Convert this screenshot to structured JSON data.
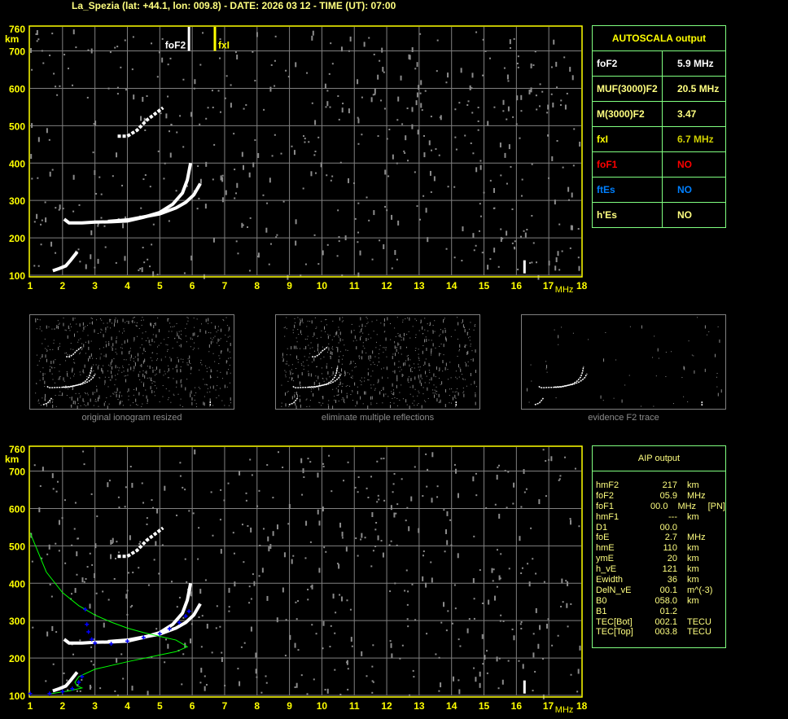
{
  "header": {
    "title": "La_Spezia (lat: +44.1, lon: 009.8) - DATE: 2026 03 12 - TIME (UT): 07:00"
  },
  "colors": {
    "axis": "#ffff00",
    "grid": "#808080",
    "trace": "#ffffff",
    "noise": "#8c8c8c",
    "profile": "#00ff00",
    "aip_trace": "#0000ff",
    "panel_border": "#80ff80",
    "foF1": "#ff0000",
    "ftEs": "#0080ff",
    "fxI": "#e0e000"
  },
  "chart_data": [
    {
      "type": "scatter",
      "name": "ionogram",
      "xlabel": "MHz",
      "ylabel": "km",
      "xlim": [
        1,
        18
      ],
      "ylim": [
        100,
        760
      ],
      "xticks": [
        "1",
        "2",
        "3",
        "4",
        "5",
        "6",
        "7",
        "8",
        "9",
        "10",
        "11",
        "12",
        "13",
        "14",
        "15",
        "16",
        "17",
        "18"
      ],
      "yticks": [
        "100",
        "200",
        "300",
        "400",
        "500",
        "600",
        "700",
        "760"
      ],
      "grid": true,
      "markers": [
        {
          "label": "foF2",
          "x": 5.9,
          "color": "#ffffff"
        },
        {
          "label": "fxI",
          "x": 6.7,
          "color": "#ffff00"
        }
      ],
      "traces": {
        "F2_ordinary": [
          [
            2.05,
            250
          ],
          [
            2.2,
            240
          ],
          [
            2.6,
            240
          ],
          [
            3,
            242
          ],
          [
            3.5,
            243
          ],
          [
            4,
            245
          ],
          [
            4.5,
            255
          ],
          [
            5,
            268
          ],
          [
            5.4,
            290
          ],
          [
            5.7,
            320
          ],
          [
            5.85,
            355
          ],
          [
            5.95,
            400
          ]
        ],
        "F2_extraordinary": [
          [
            3.4,
            244
          ],
          [
            4,
            248
          ],
          [
            4.5,
            256
          ],
          [
            5,
            264
          ],
          [
            5.5,
            280
          ],
          [
            5.8,
            295
          ],
          [
            6.05,
            315
          ],
          [
            6.25,
            345
          ]
        ],
        "E_layer": [
          [
            1.7,
            112
          ],
          [
            1.9,
            118
          ],
          [
            2.1,
            125
          ],
          [
            2.25,
            140
          ],
          [
            2.45,
            162
          ]
        ],
        "second_hop": [
          [
            3.7,
            472
          ],
          [
            4,
            472
          ],
          [
            4.3,
            488
          ],
          [
            4.6,
            515
          ],
          [
            5.1,
            548
          ]
        ],
        "spike": [
          [
            16.25,
            105
          ],
          [
            16.25,
            140
          ]
        ]
      }
    },
    {
      "type": "scatter",
      "name": "aip",
      "xlabel": "MHz",
      "ylabel": "km",
      "xlim": [
        1,
        18
      ],
      "ylim": [
        100,
        760
      ],
      "xticks": [
        "1",
        "2",
        "3",
        "4",
        "5",
        "6",
        "7",
        "8",
        "9",
        "10",
        "11",
        "12",
        "13",
        "14",
        "15",
        "16",
        "17",
        "18"
      ],
      "yticks": [
        "100",
        "200",
        "300",
        "400",
        "500",
        "600",
        "700",
        "760"
      ],
      "grid": true,
      "aip_trace": [
        [
          1,
          105
        ],
        [
          1.6,
          105
        ],
        [
          2,
          110
        ],
        [
          2.3,
          118
        ],
        [
          2.5,
          135
        ],
        [
          2.6,
          150
        ],
        null,
        [
          2.7,
          330
        ],
        [
          2.75,
          290
        ],
        [
          2.8,
          270
        ],
        [
          2.9,
          250
        ],
        [
          3,
          240
        ],
        [
          3.5,
          238
        ],
        [
          4,
          245
        ],
        [
          4.5,
          255
        ],
        [
          5,
          265
        ],
        [
          5.3,
          278
        ],
        [
          5.6,
          295
        ],
        [
          5.8,
          312
        ],
        [
          5.9,
          325
        ]
      ],
      "profile": [
        [
          1,
          535
        ],
        [
          1.5,
          430
        ],
        [
          2,
          375
        ],
        [
          2.5,
          340
        ],
        [
          3,
          315
        ],
        [
          3.5,
          296
        ],
        [
          4,
          280
        ],
        [
          4.5,
          268
        ],
        [
          5,
          258
        ],
        [
          5.5,
          248
        ],
        [
          5.85,
          230
        ],
        [
          5.5,
          217
        ],
        [
          5,
          208
        ],
        [
          4,
          190
        ],
        [
          3,
          170
        ],
        [
          2.5,
          150
        ],
        [
          2.38,
          135
        ],
        [
          2.45,
          125
        ],
        [
          2.6,
          120
        ],
        [
          2.2,
          112
        ],
        [
          1.6,
          104
        ]
      ]
    }
  ],
  "thumbnails": [
    {
      "caption": "original ionogram resized"
    },
    {
      "caption": "eliminate multiple reflections"
    },
    {
      "caption": "evidence F2 trace"
    }
  ],
  "autoscala": {
    "title": "AUTOSCALA output",
    "rows": [
      {
        "key": "foF2",
        "value": "5.9 MHz",
        "kcolor": "#ffffff",
        "vcolor": "#ffffff"
      },
      {
        "key": "MUF(3000)F2",
        "value": "20.5 MHz",
        "kcolor": "#ffff80",
        "vcolor": "#ffff80"
      },
      {
        "key": "M(3000)F2",
        "value": "3.47",
        "kcolor": "#ffff80",
        "vcolor": "#ffff80"
      },
      {
        "key": "fxI",
        "value": "6.7 MHz",
        "kcolor": "#ffff00",
        "vcolor": "#d0d000"
      },
      {
        "key": "foF1",
        "value": "NO",
        "kcolor": "#ff0000",
        "vcolor": "#ff0000"
      },
      {
        "key": "ftEs",
        "value": "NO",
        "kcolor": "#0080ff",
        "vcolor": "#0080ff"
      },
      {
        "key": "h'Es",
        "value": "NO",
        "kcolor": "#ffff80",
        "vcolor": "#ffff80"
      }
    ]
  },
  "aip": {
    "title": "AIP output",
    "rows": [
      {
        "name": "hmF2",
        "value": "217",
        "unit": "km",
        "extra": ""
      },
      {
        "name": "foF2",
        "value": "05.9",
        "unit": "MHz",
        "extra": ""
      },
      {
        "name": "foF1",
        "value": "00.0",
        "unit": "MHz",
        "extra": "[PN]"
      },
      {
        "name": "hmF1",
        "value": "---",
        "unit": "km",
        "extra": ""
      },
      {
        "name": "D1",
        "value": "00.0",
        "unit": "",
        "extra": ""
      },
      {
        "name": "foE",
        "value": "2.7",
        "unit": "MHz",
        "extra": ""
      },
      {
        "name": "hmE",
        "value": "110",
        "unit": "km",
        "extra": ""
      },
      {
        "name": "ymE",
        "value": "20",
        "unit": "km",
        "extra": ""
      },
      {
        "name": "h_vE",
        "value": "121",
        "unit": "km",
        "extra": ""
      },
      {
        "name": "Ewidth",
        "value": "36",
        "unit": "km",
        "extra": ""
      },
      {
        "name": "DelN_vE",
        "value": "00.1",
        "unit": "m^(-3)",
        "extra": ""
      },
      {
        "name": "B0",
        "value": "058.0",
        "unit": "km",
        "extra": ""
      },
      {
        "name": "B1",
        "value": "01.2",
        "unit": "",
        "extra": ""
      },
      {
        "name": "TEC[Bot]",
        "value": "002.1",
        "unit": "TECU",
        "extra": ""
      },
      {
        "name": "TEC[Top]",
        "value": "003.8",
        "unit": "TECU",
        "extra": ""
      }
    ]
  }
}
